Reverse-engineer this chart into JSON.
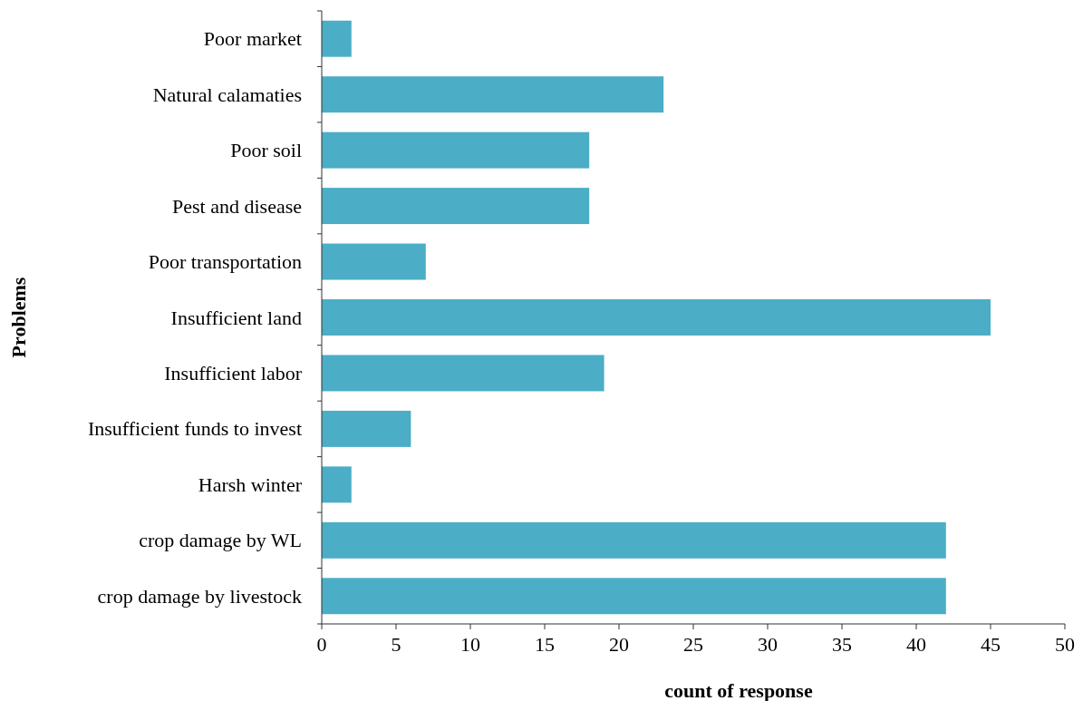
{
  "chart_data": {
    "type": "bar",
    "orientation": "horizontal",
    "xlabel": "count of response",
    "ylabel": "Problems",
    "categories": [
      "Poor market",
      "Natural calamaties",
      "Poor soil",
      "Pest and disease",
      "Poor transportation",
      "Insufficient land",
      "Insufficient labor",
      "Insufficient funds to invest",
      "Harsh winter",
      "crop damage by WL",
      "crop damage by livestock"
    ],
    "values": [
      2,
      23,
      18,
      18,
      7,
      45,
      19,
      6,
      2,
      42,
      42
    ],
    "color": "#4badc6",
    "xlim": [
      0,
      50
    ],
    "xticks": [
      0,
      5,
      10,
      15,
      20,
      25,
      30,
      35,
      40,
      45,
      50
    ]
  }
}
